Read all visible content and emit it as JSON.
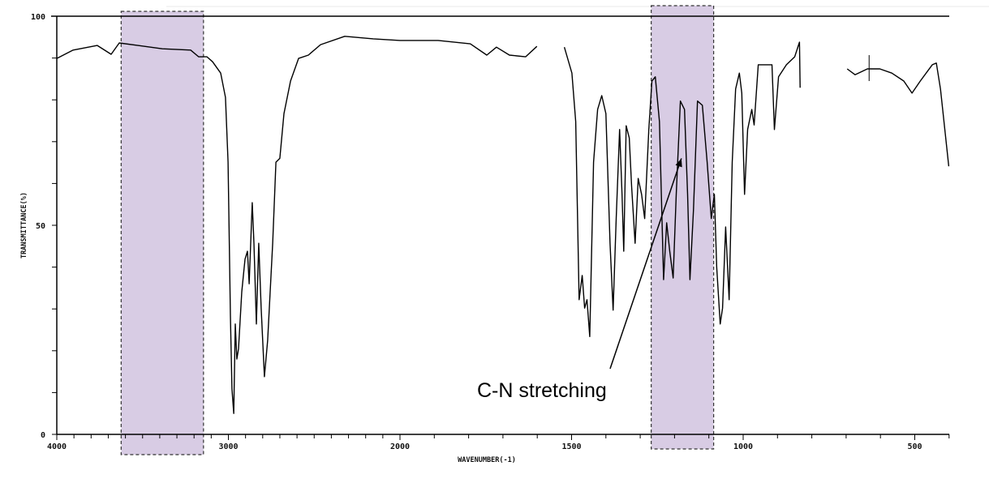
{
  "chart_data": {
    "type": "line",
    "title": "",
    "xlabel": "WAVENUMBER(-1)",
    "ylabel": "TRANSMITTANCE(%)",
    "xlim": [
      4000,
      400
    ],
    "x_scale_break": 2000,
    "x_scale_note": "scale below 2000 is twice the scale above 2000",
    "ylim": [
      0,
      100
    ],
    "x_ticks": [
      4000,
      3000,
      2000,
      1500,
      1000,
      500
    ],
    "x_tick_labels": [
      "4000",
      "3000",
      "2000",
      "1500",
      "1000",
      "500"
    ],
    "y_ticks": [
      0,
      50,
      100
    ],
    "y_tick_labels": [
      "0",
      "50",
      "100"
    ],
    "grid": false,
    "colors": {
      "line": "#000000",
      "highlight": "#d8cce4",
      "highlight_border": "#333333"
    },
    "series": [
      {
        "name": "spectrum",
        "segments": [
          [
            [
              4000,
              89.9
            ],
            [
              3905,
              91.9
            ],
            [
              3764,
              93
            ],
            [
              3683,
              90.9
            ],
            [
              3636,
              93.6
            ],
            [
              3527,
              93
            ],
            [
              3385,
              92.2
            ],
            [
              3220,
              91.9
            ],
            [
              3173,
              90.3
            ],
            [
              3125,
              90.3
            ],
            [
              3092,
              89.1
            ],
            [
              3045,
              86.4
            ],
            [
              3017,
              80.6
            ],
            [
              3002,
              65.1
            ],
            [
              2988,
              28.3
            ],
            [
              2979,
              10.9
            ],
            [
              2969,
              5
            ],
            [
              2960,
              26.4
            ],
            [
              2951,
              18
            ],
            [
              2941,
              20.5
            ],
            [
              2922,
              34.1
            ],
            [
              2903,
              41.9
            ],
            [
              2889,
              43.8
            ],
            [
              2879,
              36
            ],
            [
              2861,
              55.4
            ],
            [
              2851,
              45.7
            ],
            [
              2837,
              26.4
            ],
            [
              2823,
              45.7
            ],
            [
              2809,
              30.2
            ],
            [
              2790,
              13.8
            ],
            [
              2771,
              22.5
            ],
            [
              2742,
              45.7
            ],
            [
              2723,
              65.1
            ],
            [
              2700,
              66
            ],
            [
              2676,
              76.7
            ],
            [
              2638,
              84.5
            ],
            [
              2591,
              89.9
            ],
            [
              2534,
              90.7
            ],
            [
              2463,
              93.2
            ],
            [
              2322,
              95.2
            ],
            [
              2156,
              94.6
            ],
            [
              2000,
              94.2
            ],
            [
              1889,
              94.2
            ],
            [
              1795,
              93.4
            ],
            [
              1747,
              90.7
            ],
            [
              1719,
              92.6
            ],
            [
              1681,
              90.7
            ],
            [
              1634,
              90.3
            ],
            [
              1601,
              92.8
            ]
          ],
          [
            [
              1521,
              92.6
            ],
            [
              1499,
              86.4
            ],
            [
              1488,
              74.8
            ],
            [
              1478,
              32.2
            ],
            [
              1469,
              38
            ],
            [
              1462,
              30.2
            ],
            [
              1455,
              32.2
            ],
            [
              1447,
              23.4
            ],
            [
              1436,
              65.1
            ],
            [
              1424,
              77.7
            ],
            [
              1412,
              81
            ],
            [
              1400,
              76.7
            ],
            [
              1388,
              45.7
            ],
            [
              1379,
              29.7
            ],
            [
              1370,
              51.6
            ],
            [
              1360,
              72.9
            ],
            [
              1353,
              57.4
            ],
            [
              1348,
              43.8
            ],
            [
              1341,
              73.8
            ],
            [
              1332,
              70.9
            ],
            [
              1325,
              59.3
            ],
            [
              1315,
              45.7
            ],
            [
              1306,
              61.2
            ],
            [
              1296,
              57.4
            ],
            [
              1287,
              51.6
            ],
            [
              1275,
              72.9
            ],
            [
              1266,
              84.5
            ],
            [
              1256,
              85.5
            ],
            [
              1244,
              74.8
            ],
            [
              1232,
              37
            ],
            [
              1223,
              50.6
            ],
            [
              1214,
              43.8
            ],
            [
              1204,
              37.4
            ],
            [
              1195,
              57.4
            ],
            [
              1183,
              79.7
            ],
            [
              1171,
              77.7
            ],
            [
              1162,
              57.4
            ],
            [
              1155,
              37
            ],
            [
              1145,
              53.5
            ],
            [
              1133,
              79.7
            ],
            [
              1119,
              78.7
            ],
            [
              1105,
              65.1
            ],
            [
              1093,
              51.6
            ],
            [
              1084,
              57.4
            ],
            [
              1077,
              39.9
            ],
            [
              1067,
              26.4
            ],
            [
              1060,
              30.2
            ],
            [
              1051,
              49.6
            ],
            [
              1041,
              32.2
            ],
            [
              1032,
              65.1
            ],
            [
              1022,
              82.6
            ],
            [
              1011,
              86.4
            ],
            [
              1004,
              81.6
            ],
            [
              996,
              57.4
            ],
            [
              987,
              72.9
            ],
            [
              975,
              77.7
            ],
            [
              968,
              74
            ],
            [
              956,
              88.4
            ],
            [
              933,
              88.4
            ],
            [
              916,
              88.4
            ],
            [
              909,
              72.9
            ],
            [
              897,
              85.5
            ],
            [
              874,
              88.4
            ],
            [
              850,
              90.3
            ],
            [
              836,
              93.8
            ],
            [
              834,
              82.9
            ]
          ],
          [
            [
              697,
              87.4
            ],
            [
              674,
              86
            ],
            [
              638,
              87.4
            ],
            [
              602,
              87.4
            ],
            [
              567,
              86.4
            ],
            [
              532,
              84.5
            ],
            [
              508,
              81.6
            ],
            [
              484,
              84.5
            ],
            [
              449,
              88.4
            ],
            [
              437,
              88.8
            ],
            [
              425,
              82.6
            ],
            [
              401,
              64.1
            ]
          ]
        ]
      }
    ],
    "highlights": [
      {
        "name": "region-3625-3145",
        "from": 3625,
        "to": 3145
      },
      {
        "name": "region-1268-1086",
        "from": 1268,
        "to": 1086
      }
    ],
    "annotations": [
      {
        "text": "C-N stretching",
        "arrow_to": [
          1180,
          66
        ]
      }
    ]
  }
}
